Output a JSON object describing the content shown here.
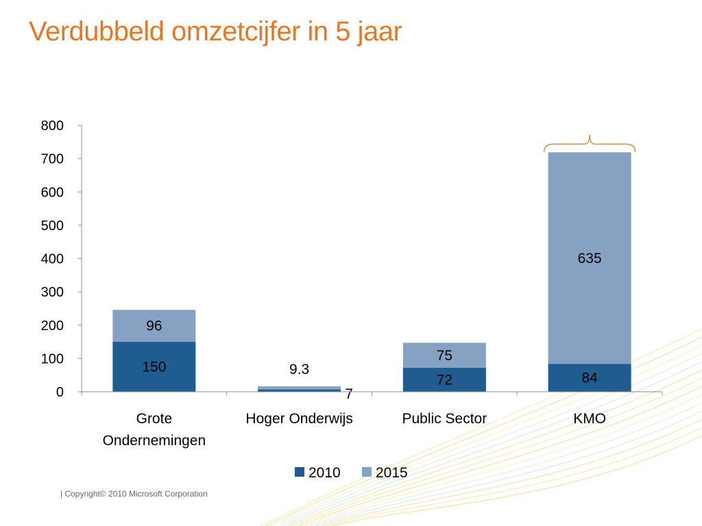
{
  "slide": {
    "title": "Verdubbeld omzetcijfer in 5 jaar",
    "footer": "| Copyright© 2010 Microsoft Corporation"
  },
  "colors": {
    "title": "#e87722",
    "series_2010": "#1f5c8f",
    "series_2015": "#87a1c3",
    "axis": "#8c8c8c",
    "brace": "#e8863a",
    "text": "#000000"
  },
  "chart_data": {
    "type": "bar",
    "stacked": true,
    "categories": [
      "Grote Ondernemingen",
      "Hoger Onderwijs",
      "Public Sector",
      "KMO"
    ],
    "category_lines": [
      [
        "Grote",
        "Ondernemingen"
      ],
      [
        "Hoger Onderwijs"
      ],
      [
        "Public Sector"
      ],
      [
        "KMO"
      ]
    ],
    "series": [
      {
        "name": "2010",
        "values": [
          150,
          7,
          72,
          84
        ]
      },
      {
        "name": "2015",
        "values": [
          96,
          9.3,
          75,
          635
        ]
      }
    ],
    "data_labels": [
      [
        "150",
        "7",
        "72",
        "84"
      ],
      [
        "96",
        "9.3",
        "75",
        "635"
      ]
    ],
    "ylim": [
      0,
      800
    ],
    "yticks": [
      0,
      100,
      200,
      300,
      400,
      500,
      600,
      700,
      800
    ],
    "ytick_labels": [
      "0",
      "100",
      "200",
      "300",
      "400",
      "500",
      "600",
      "700",
      "800"
    ],
    "grid": false,
    "legend_position": "bottom",
    "annotation": "brace over KMO bar"
  }
}
